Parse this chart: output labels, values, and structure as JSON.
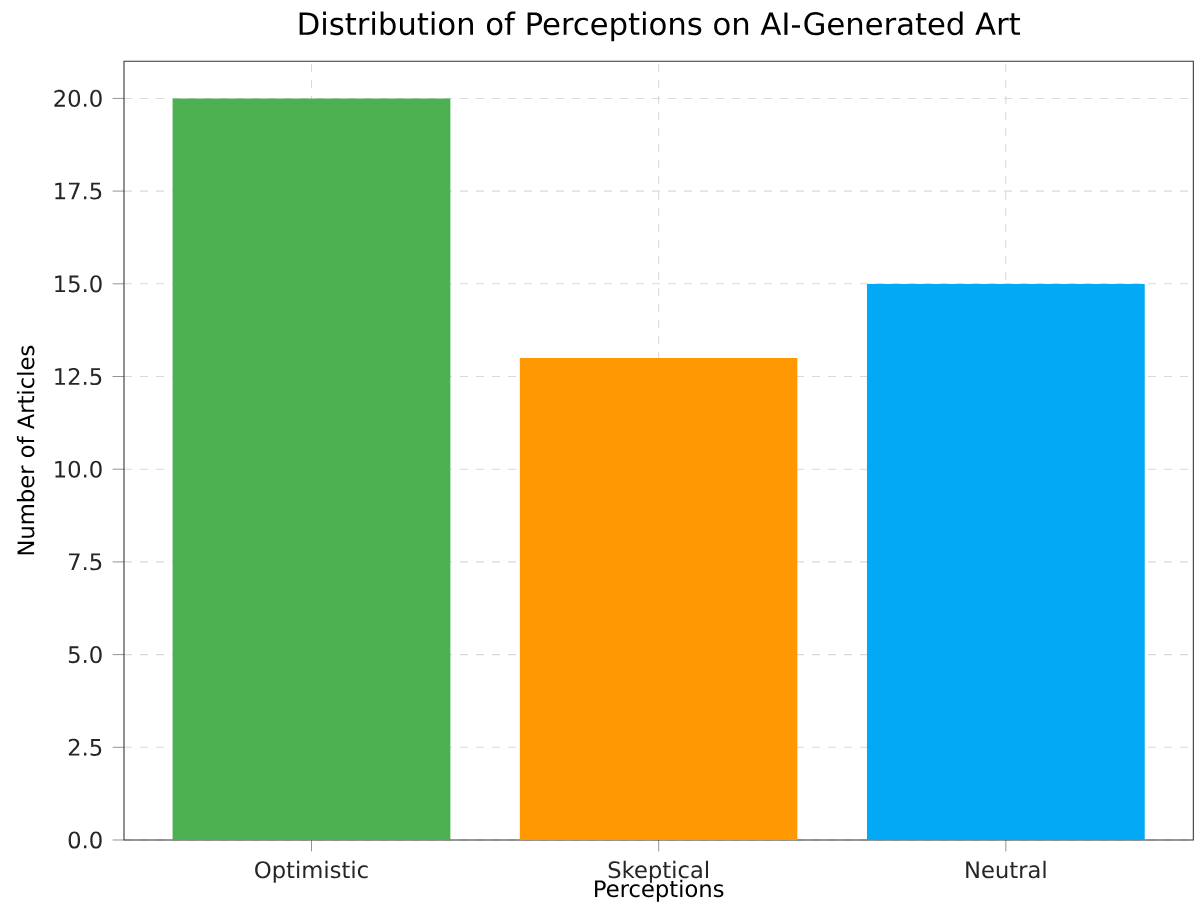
{
  "chart_data": {
    "type": "bar",
    "title": "Distribution of Perceptions on AI-Generated Art",
    "xlabel": "Perceptions",
    "ylabel": "Number of Articles",
    "categories": [
      "Optimistic",
      "Skeptical",
      "Neutral"
    ],
    "values": [
      20,
      13,
      15
    ],
    "colors": [
      "#4caf50",
      "#ff9800",
      "#03a9f4"
    ],
    "ylim": [
      0,
      21
    ],
    "yticks": [
      {
        "value": 0,
        "label": "0.0"
      },
      {
        "value": 2.5,
        "label": "2.5"
      },
      {
        "value": 5,
        "label": "5.0"
      },
      {
        "value": 7.5,
        "label": "7.5"
      },
      {
        "value": 10,
        "label": "10.0"
      },
      {
        "value": 12.5,
        "label": "12.5"
      },
      {
        "value": 15,
        "label": "15.0"
      },
      {
        "value": 17.5,
        "label": "17.5"
      },
      {
        "value": 20,
        "label": "20.0"
      }
    ],
    "grid": true
  }
}
